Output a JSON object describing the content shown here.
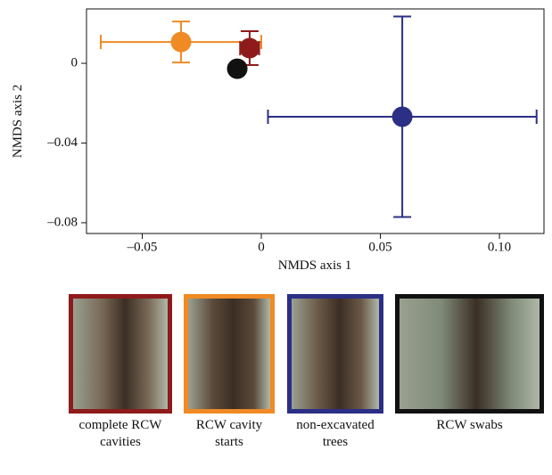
{
  "chart_data": {
    "type": "scatter",
    "xlabel": "NMDS axis 1",
    "ylabel": "NMDS axis 2",
    "xlim": [
      -0.0734,
      0.1187
    ],
    "ylim": [
      -0.0854,
      0.0273
    ],
    "xticks": [
      {
        "value": -0.05,
        "label": "–0.05"
      },
      0,
      0.05,
      {
        "value": 0.1,
        "label": "0.10"
      }
    ],
    "yticks": [
      0,
      {
        "value": -0.04,
        "label": "–0.04"
      },
      {
        "value": -0.08,
        "label": "–0.08"
      }
    ],
    "series": [
      {
        "name": "RCW cavity starts",
        "color": "#f08a24",
        "x": -0.0337,
        "y": 0.0107,
        "xerr": 0.0337,
        "yerr": 0.0103
      },
      {
        "name": "complete RCW cavities",
        "color": "#8e1b1b",
        "x": -0.0049,
        "y": 0.0076,
        "xerr": 0.004,
        "yerr": 0.0085
      },
      {
        "name": "RCW swabs",
        "color": "#111111",
        "x": -0.0101,
        "y": -0.0027,
        "xerr": 0,
        "yerr": 0
      },
      {
        "name": "non-excavated trees",
        "color": "#2b2f86",
        "x": 0.0592,
        "y": -0.0268,
        "xerr": 0.0564,
        "yerr": 0.0503
      }
    ],
    "legend_order": [
      1,
      0,
      3,
      2
    ]
  }
}
